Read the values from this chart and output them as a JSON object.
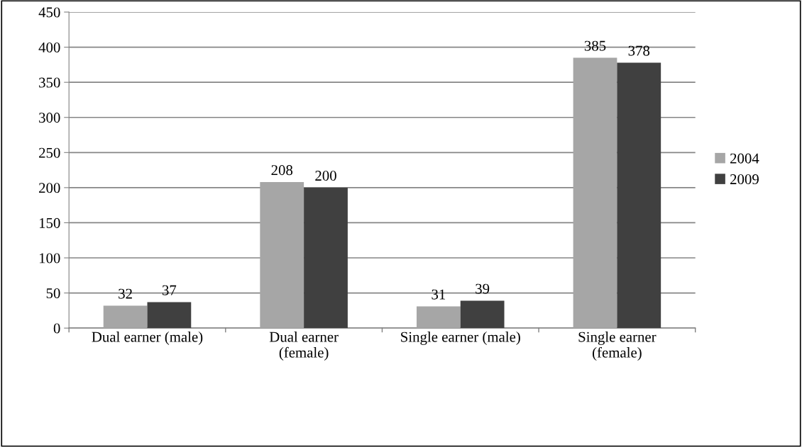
{
  "chart_data": {
    "type": "bar",
    "categories": [
      "Dual earner (male)",
      "Dual earner\n(female)",
      "Single earner (male)",
      "Single earner\n(female)"
    ],
    "series": [
      {
        "name": "2004",
        "color": "#a6a6a6",
        "values": [
          32,
          208,
          31,
          385
        ]
      },
      {
        "name": "2009",
        "color": "#404040",
        "values": [
          37,
          200,
          39,
          378
        ]
      }
    ],
    "ylim": [
      0,
      450
    ],
    "yticks": [
      0,
      50,
      100,
      150,
      200,
      250,
      300,
      350,
      400,
      450
    ],
    "grid": "y",
    "legend": "right",
    "data_labels": true
  }
}
